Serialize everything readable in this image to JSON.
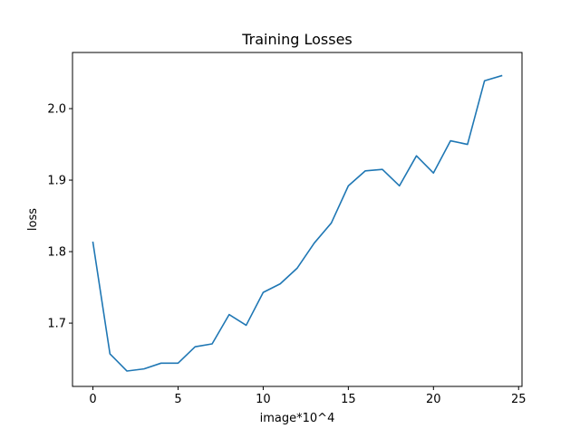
{
  "chart_data": {
    "type": "line",
    "title": "Training Losses",
    "xlabel": "image*10^4",
    "ylabel": "loss",
    "xlim": [
      -1.2,
      25.2
    ],
    "ylim": [
      1.6115,
      2.0785
    ],
    "xticks": [
      0,
      5,
      10,
      15,
      20,
      25
    ],
    "xtick_labels": [
      "0",
      "5",
      "10",
      "15",
      "20",
      "25"
    ],
    "yticks": [
      1.7,
      1.8,
      1.9,
      2.0
    ],
    "ytick_labels": [
      "1.7",
      "1.8",
      "1.9",
      "2.0"
    ],
    "grid": false,
    "legend": null,
    "series": [
      {
        "color": "#1f77b4",
        "x": [
          0,
          1,
          2,
          3,
          4,
          5,
          6,
          7,
          8,
          9,
          10,
          11,
          12,
          13,
          14,
          15,
          16,
          17,
          18,
          19,
          20,
          21,
          22,
          23,
          24
        ],
        "y": [
          1.813,
          1.657,
          1.633,
          1.636,
          1.644,
          1.644,
          1.667,
          1.671,
          1.712,
          1.697,
          1.743,
          1.755,
          1.777,
          1.812,
          1.84,
          1.892,
          1.913,
          1.915,
          1.892,
          1.934,
          1.91,
          1.955,
          1.95,
          2.039,
          2.046
        ]
      }
    ]
  }
}
